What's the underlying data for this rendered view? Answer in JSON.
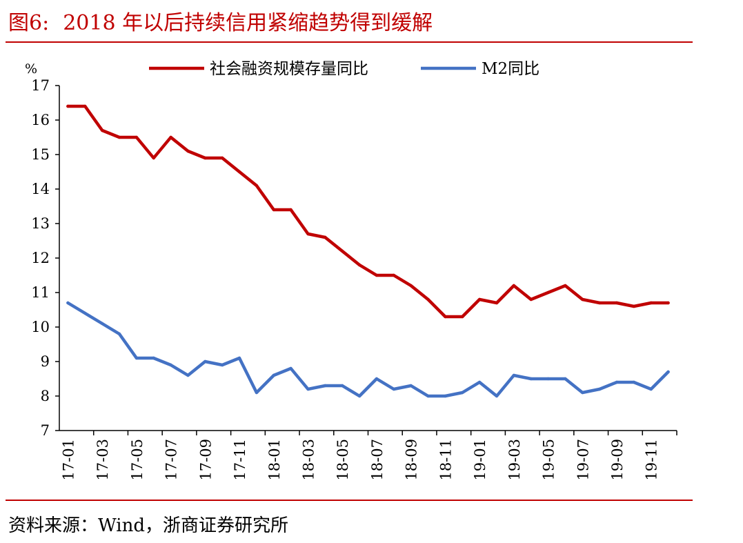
{
  "figure": {
    "title_prefix": "图6:",
    "title_text": "2018 年以后持续信用紧缩趋势得到缓解",
    "source": "资料来源：Wind，浙商证券研究所"
  },
  "colors": {
    "series1": "#c00000",
    "series2": "#4472c4",
    "rule": "#c00000"
  },
  "chart_data": {
    "type": "line",
    "ylabel": "%",
    "ylim": [
      7,
      17
    ],
    "yticks": [
      7,
      8,
      9,
      10,
      11,
      12,
      13,
      14,
      15,
      16,
      17
    ],
    "grid": false,
    "legend_position": "top",
    "x": [
      "17-01",
      "17-02",
      "17-03",
      "17-04",
      "17-05",
      "17-06",
      "17-07",
      "17-08",
      "17-09",
      "17-10",
      "17-11",
      "17-12",
      "18-01",
      "18-02",
      "18-03",
      "18-04",
      "18-05",
      "18-06",
      "18-07",
      "18-08",
      "18-09",
      "18-10",
      "18-11",
      "18-12",
      "19-01",
      "19-02",
      "19-03",
      "19-04",
      "19-05",
      "19-06",
      "19-07",
      "19-08",
      "19-09",
      "19-10",
      "19-11",
      "19-12"
    ],
    "xtick_labels": [
      "17-01",
      "17-03",
      "17-05",
      "17-07",
      "17-09",
      "17-11",
      "18-01",
      "18-03",
      "18-05",
      "18-07",
      "18-09",
      "18-11",
      "19-01",
      "19-03",
      "19-05",
      "19-07",
      "19-09",
      "19-11"
    ],
    "series": [
      {
        "name": "社会融资规模存量同比",
        "values": [
          16.4,
          16.4,
          15.7,
          15.5,
          15.5,
          14.9,
          15.5,
          15.1,
          14.9,
          14.9,
          14.5,
          14.1,
          13.4,
          13.4,
          12.7,
          12.6,
          12.2,
          11.8,
          11.5,
          11.5,
          11.2,
          10.8,
          10.3,
          10.3,
          10.8,
          10.7,
          11.2,
          10.8,
          11.0,
          11.2,
          10.8,
          10.7,
          10.7,
          10.6,
          10.7,
          10.7
        ]
      },
      {
        "name": "M2同比",
        "values": [
          10.7,
          10.4,
          10.1,
          9.8,
          9.1,
          9.1,
          8.9,
          8.6,
          9.0,
          8.9,
          9.1,
          8.1,
          8.6,
          8.8,
          8.2,
          8.3,
          8.3,
          8.0,
          8.5,
          8.2,
          8.3,
          8.0,
          8.0,
          8.1,
          8.4,
          8.0,
          8.6,
          8.5,
          8.5,
          8.5,
          8.1,
          8.2,
          8.4,
          8.4,
          8.2,
          8.7
        ]
      }
    ]
  }
}
